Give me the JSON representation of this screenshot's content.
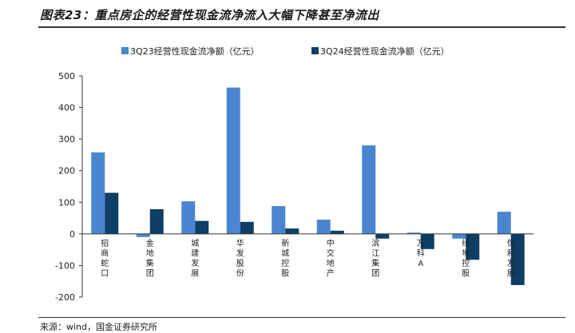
{
  "figure": {
    "title": "图表23：重点房企的经营性现金流净流入大幅下降甚至净流出",
    "source": "来源：wind，国金证券研究所"
  },
  "chart_data": {
    "type": "bar",
    "categories": [
      "招商蛇口",
      "金地集团",
      "城建发展",
      "华发股份",
      "新城控股",
      "中交地产",
      "滨江集团",
      "万科A",
      "绿地控股",
      "保利发展"
    ],
    "series": [
      {
        "name": "3Q23经营性现金流净额（亿元）",
        "color": "#4a86cf",
        "values": [
          258,
          -10,
          103,
          463,
          88,
          45,
          280,
          4,
          -15,
          70
        ]
      },
      {
        "name": "3Q24经营性现金流净额（亿元）",
        "color": "#0d3f66",
        "values": [
          130,
          78,
          41,
          38,
          17,
          10,
          -15,
          -48,
          -82,
          -162
        ]
      }
    ],
    "ylim": [
      -200,
      500
    ],
    "yticks": [
      -200,
      -100,
      0,
      100,
      200,
      300,
      400,
      500
    ],
    "legend_position": "top",
    "grid": false
  }
}
